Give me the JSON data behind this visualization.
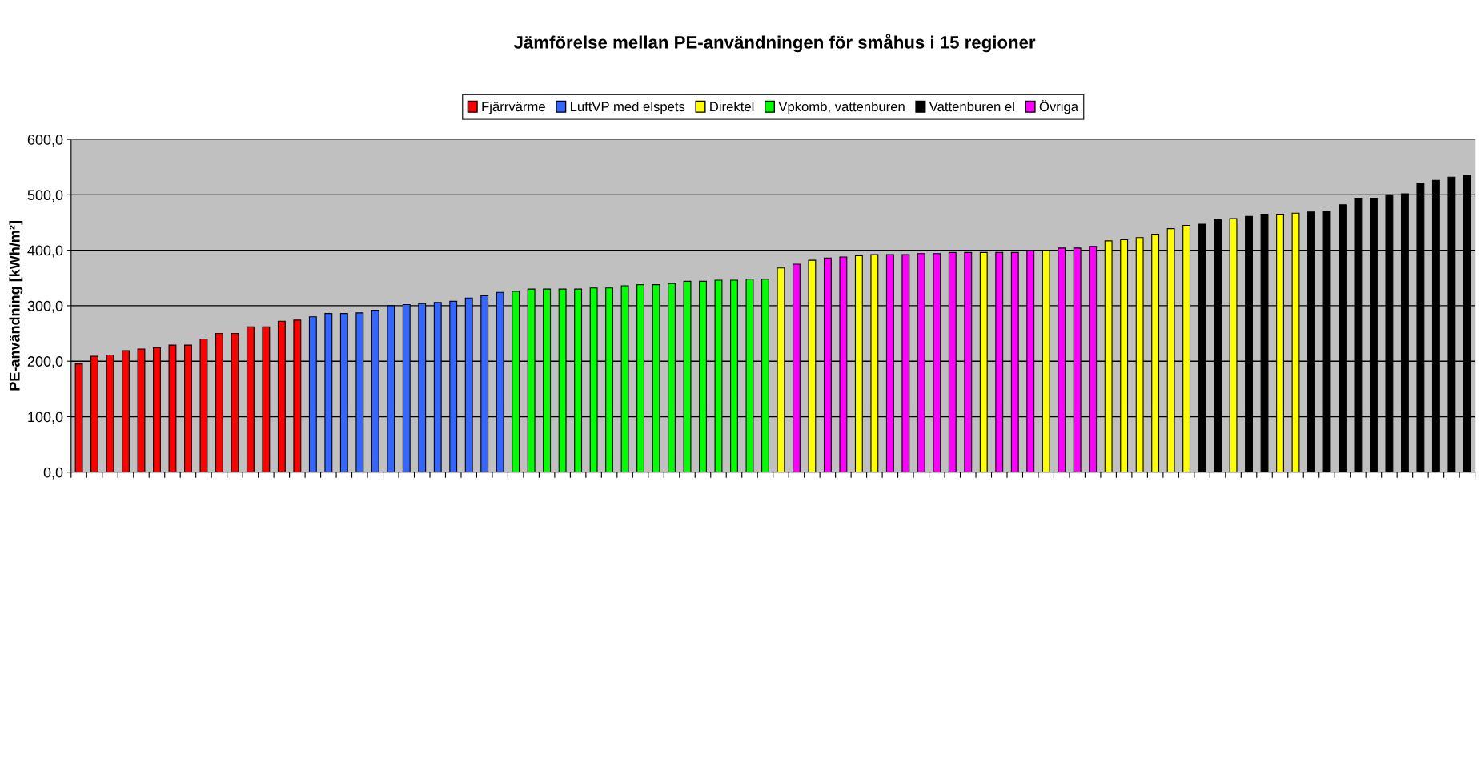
{
  "chart_data": {
    "type": "bar",
    "title": "Jämförelse mellan PE-användningen för småhus i 15 regioner",
    "ylabel": "PE-användning [kWh/m²]",
    "categories": [
      null,
      null,
      null,
      null,
      null,
      null,
      null,
      null,
      null,
      null,
      null,
      null,
      null,
      null,
      null,
      null,
      null,
      null,
      null,
      null,
      null,
      null,
      null,
      null,
      null,
      null,
      null,
      null,
      null,
      null,
      null,
      null,
      null,
      null,
      null,
      null,
      null,
      null,
      null,
      null,
      null,
      null,
      null,
      null,
      null,
      null,
      null,
      null,
      null,
      null,
      null,
      null,
      null,
      null,
      null,
      null,
      null,
      null,
      null,
      null,
      null,
      null,
      null,
      null,
      null,
      null,
      null,
      null,
      null,
      null,
      null,
      null,
      null,
      null,
      null,
      null,
      null,
      null,
      null,
      null,
      null,
      null,
      null,
      null,
      null,
      null,
      null,
      null,
      null,
      null
    ],
    "series": [
      {
        "name": "Fjärrvärme",
        "color": "#ff0000",
        "values": [
          195,
          209,
          211,
          219,
          222,
          224,
          229,
          229,
          240,
          250,
          250,
          262,
          262,
          272,
          274,
          null,
          null,
          null,
          null,
          null,
          null,
          null,
          null,
          null,
          null,
          null,
          null,
          null,
          null,
          null,
          null,
          null,
          null,
          null,
          null,
          null,
          null,
          null,
          null,
          null,
          null,
          null,
          null,
          null,
          null,
          null,
          null,
          null,
          null,
          null,
          null,
          null,
          null,
          null,
          null,
          null,
          null,
          null,
          null,
          null,
          null,
          null,
          null,
          null,
          null,
          null,
          null,
          null,
          null,
          null,
          null,
          null,
          null,
          null,
          null,
          null,
          null,
          null,
          null,
          null,
          null,
          null,
          null,
          null,
          null,
          null,
          null,
          null,
          null,
          null
        ]
      },
      {
        "name": "LuftVP med elspets",
        "color": "#3366ff",
        "values": [
          null,
          null,
          null,
          null,
          null,
          null,
          null,
          null,
          null,
          null,
          null,
          null,
          null,
          null,
          null,
          280,
          286,
          286,
          287,
          292,
          300,
          302,
          304,
          306,
          308,
          314,
          318,
          324,
          null,
          null,
          null,
          null,
          null,
          null,
          null,
          null,
          null,
          null,
          null,
          null,
          null,
          null,
          null,
          null,
          null,
          null,
          null,
          null,
          null,
          null,
          null,
          null,
          null,
          null,
          null,
          null,
          null,
          null,
          null,
          null,
          null,
          null,
          null,
          null,
          null,
          null,
          null,
          null,
          null,
          null,
          null,
          null,
          null,
          null,
          null,
          null,
          null,
          null,
          null,
          null,
          null,
          null,
          null,
          null,
          null,
          null,
          null,
          null,
          null,
          null
        ]
      },
      {
        "name": "Direktel",
        "color": "#ffff00",
        "values": [
          null,
          null,
          null,
          null,
          null,
          null,
          null,
          null,
          null,
          null,
          null,
          null,
          null,
          null,
          null,
          null,
          null,
          null,
          null,
          null,
          null,
          null,
          null,
          null,
          null,
          null,
          null,
          null,
          null,
          null,
          null,
          null,
          null,
          null,
          null,
          null,
          null,
          null,
          null,
          null,
          null,
          null,
          null,
          null,
          null,
          368,
          null,
          382,
          null,
          null,
          390,
          392,
          null,
          null,
          null,
          null,
          null,
          null,
          396,
          null,
          null,
          null,
          400,
          null,
          null,
          null,
          417,
          419,
          423,
          429,
          439,
          445,
          null,
          null,
          457,
          null,
          null,
          465,
          467,
          null,
          null,
          null,
          null,
          null,
          null,
          null,
          null,
          null,
          null,
          null
        ]
      },
      {
        "name": "Vpkomb, vattenburen",
        "color": "#00ff00",
        "values": [
          null,
          null,
          null,
          null,
          null,
          null,
          null,
          null,
          null,
          null,
          null,
          null,
          null,
          null,
          null,
          null,
          null,
          null,
          null,
          null,
          null,
          null,
          null,
          null,
          null,
          null,
          null,
          null,
          326,
          330,
          330,
          330,
          330,
          332,
          332,
          336,
          338,
          338,
          340,
          344,
          344,
          346,
          346,
          348,
          348,
          null,
          null,
          null,
          null,
          null,
          null,
          null,
          null,
          null,
          null,
          null,
          null,
          null,
          null,
          null,
          null,
          null,
          null,
          null,
          null,
          null,
          null,
          null,
          null,
          null,
          null,
          null,
          null,
          null,
          null,
          null,
          null,
          null,
          null,
          null,
          null,
          null,
          null,
          null,
          null,
          null,
          null,
          null,
          null,
          null
        ]
      },
      {
        "name": "Vattenburen el",
        "color": "#000000",
        "values": [
          null,
          null,
          null,
          null,
          null,
          null,
          null,
          null,
          null,
          null,
          null,
          null,
          null,
          null,
          null,
          null,
          null,
          null,
          null,
          null,
          null,
          null,
          null,
          null,
          null,
          null,
          null,
          null,
          null,
          null,
          null,
          null,
          null,
          null,
          null,
          null,
          null,
          null,
          null,
          null,
          null,
          null,
          null,
          null,
          null,
          null,
          null,
          null,
          null,
          null,
          null,
          null,
          null,
          null,
          null,
          null,
          null,
          null,
          null,
          null,
          null,
          null,
          null,
          null,
          null,
          null,
          null,
          null,
          null,
          null,
          null,
          null,
          447,
          455,
          null,
          461,
          465,
          null,
          null,
          469,
          471,
          482,
          494,
          494,
          500,
          502,
          521,
          526,
          532,
          535
        ]
      },
      {
        "name": "Övriga",
        "color": "#ff00ff",
        "values": [
          null,
          null,
          null,
          null,
          null,
          null,
          null,
          null,
          null,
          null,
          null,
          null,
          null,
          null,
          null,
          null,
          null,
          null,
          null,
          null,
          null,
          null,
          null,
          null,
          null,
          null,
          null,
          null,
          null,
          null,
          null,
          null,
          null,
          null,
          null,
          null,
          null,
          null,
          null,
          null,
          null,
          null,
          null,
          null,
          null,
          null,
          375,
          null,
          386,
          388,
          null,
          null,
          392,
          392,
          394,
          394,
          396,
          396,
          null,
          396,
          396,
          400,
          null,
          404,
          404,
          407,
          null,
          null,
          null,
          null,
          null,
          null,
          null,
          null,
          null,
          null,
          null,
          null,
          null,
          null,
          null,
          null,
          null,
          null,
          null,
          null,
          null,
          null,
          null,
          null
        ]
      }
    ],
    "ylim": [
      0,
      600
    ],
    "yticks": [
      {
        "value": 0,
        "label": "0,0"
      },
      {
        "value": 100,
        "label": "100,0"
      },
      {
        "value": 200,
        "label": "200,0"
      },
      {
        "value": 300,
        "label": "300,0"
      },
      {
        "value": 400,
        "label": "400,0"
      },
      {
        "value": 500,
        "label": "500,0"
      },
      {
        "value": 600,
        "label": "600,0"
      }
    ],
    "grid": "y",
    "legend": "top",
    "tick_labels": "y"
  }
}
